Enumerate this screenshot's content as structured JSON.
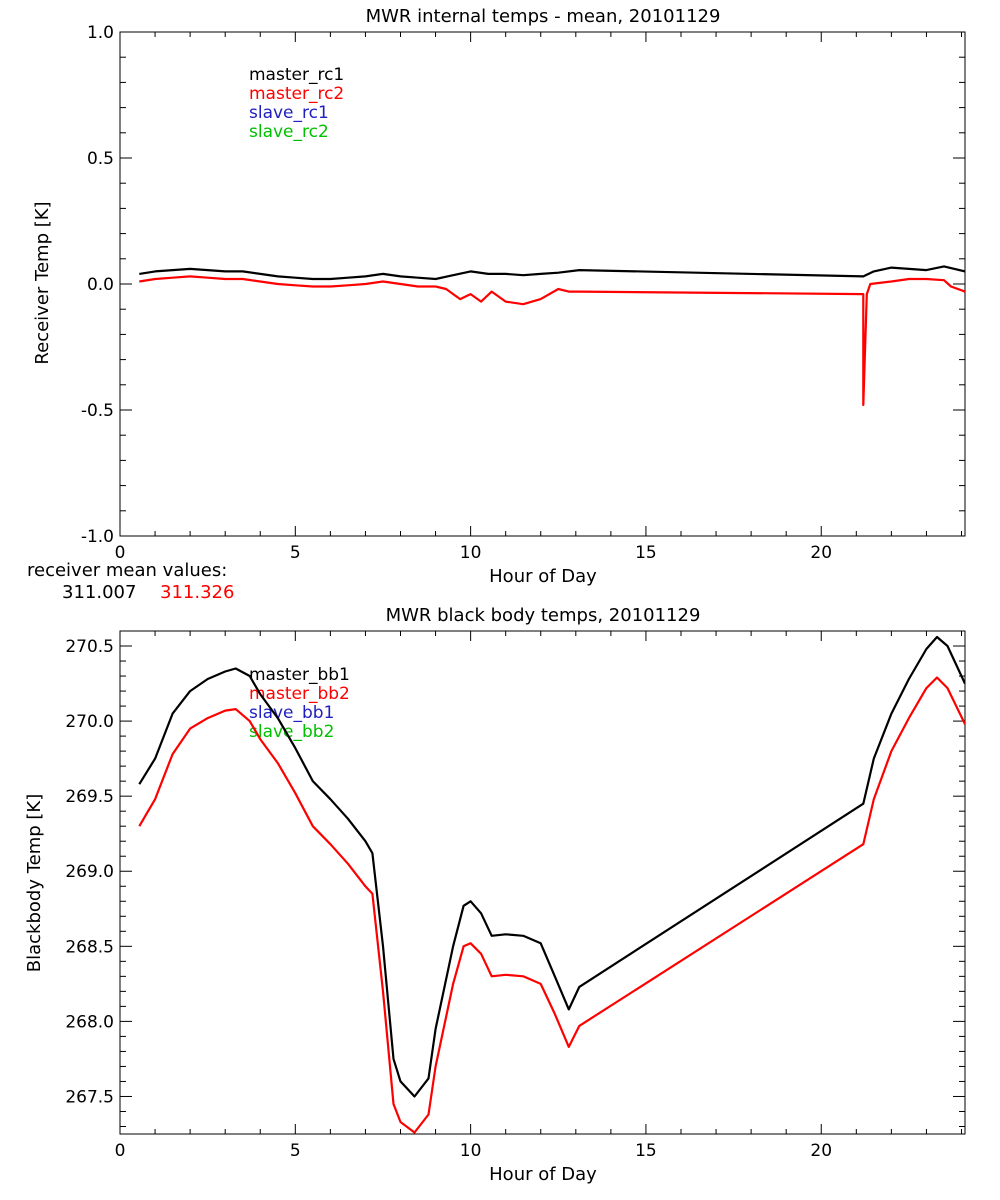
{
  "colors": {
    "master1": "#000000",
    "master2": "#ff0000",
    "slave1": "#2020c0",
    "slave2": "#00c000"
  },
  "receiver_mean": {
    "label": "receiver mean values:",
    "master_rc1": "311.007",
    "master_rc2": "311.326"
  },
  "chart_data": [
    {
      "type": "line",
      "title": "MWR internal temps - mean, 20101129",
      "xlabel": "Hour of Day",
      "ylabel": "Receiver Temp [K]",
      "xlim": [
        0,
        24.1
      ],
      "ylim": [
        -1.0,
        1.0
      ],
      "xticks": [
        0,
        5,
        10,
        15,
        20
      ],
      "xtick_labels": [
        "0",
        "5",
        "10",
        "15",
        "20"
      ],
      "yticks": [
        1.0,
        0.5,
        0.0,
        -0.5,
        -1.0
      ],
      "ytick_labels": [
        "1.0",
        "0.5",
        "0.0",
        "-0.5",
        "-1.0"
      ],
      "legend": [
        "master_rc1",
        "master_rc2",
        "slave_rc1",
        "slave_rc2"
      ],
      "legend_position": "top-left",
      "grid": false,
      "series": [
        {
          "name": "master_rc1",
          "x": [
            0.55,
            1.0,
            1.5,
            2.0,
            2.5,
            3.0,
            3.5,
            4.0,
            4.5,
            5.0,
            5.5,
            6.0,
            6.5,
            7.0,
            7.5,
            8.0,
            8.5,
            9.0,
            9.5,
            10.0,
            10.5,
            11.0,
            11.5,
            12.0,
            12.5,
            13.1,
            21.2,
            21.5,
            22.0,
            22.5,
            23.0,
            23.5,
            24.1
          ],
          "y": [
            0.04,
            0.05,
            0.055,
            0.06,
            0.055,
            0.05,
            0.05,
            0.04,
            0.03,
            0.025,
            0.02,
            0.02,
            0.025,
            0.03,
            0.04,
            0.03,
            0.025,
            0.02,
            0.035,
            0.05,
            0.04,
            0.04,
            0.035,
            0.04,
            0.045,
            0.055,
            0.03,
            0.05,
            0.065,
            0.06,
            0.055,
            0.07,
            0.05
          ]
        },
        {
          "name": "master_rc2",
          "x": [
            0.55,
            1.0,
            1.5,
            2.0,
            2.5,
            3.0,
            3.5,
            4.0,
            4.5,
            5.0,
            5.5,
            6.0,
            6.5,
            7.0,
            7.5,
            8.0,
            8.5,
            9.0,
            9.3,
            9.7,
            10.0,
            10.3,
            10.6,
            11.0,
            11.5,
            12.0,
            12.5,
            12.8,
            13.1,
            21.2,
            21.2,
            21.3,
            21.4,
            22.0,
            22.5,
            23.0,
            23.5,
            23.7,
            24.1
          ],
          "y": [
            0.01,
            0.02,
            0.025,
            0.03,
            0.025,
            0.02,
            0.02,
            0.01,
            0.0,
            -0.005,
            -0.01,
            -0.01,
            -0.005,
            0.0,
            0.01,
            0.0,
            -0.01,
            -0.01,
            -0.02,
            -0.06,
            -0.04,
            -0.07,
            -0.03,
            -0.07,
            -0.08,
            -0.06,
            -0.02,
            -0.03,
            -0.03,
            -0.04,
            -0.48,
            -0.04,
            0.0,
            0.01,
            0.02,
            0.02,
            0.015,
            -0.01,
            -0.03
          ]
        }
      ]
    },
    {
      "type": "line",
      "title": "MWR black body temps, 20101129",
      "xlabel": "Hour of Day",
      "ylabel": "Blackbody Temp [K]",
      "xlim": [
        0,
        24.1
      ],
      "ylim": [
        267.25,
        270.6
      ],
      "xticks": [
        0,
        5,
        10,
        15,
        20
      ],
      "xtick_labels": [
        "0",
        "5",
        "10",
        "15",
        "20"
      ],
      "yticks": [
        270.5,
        270.0,
        269.5,
        269.0,
        268.5,
        268.0,
        267.5
      ],
      "ytick_labels": [
        "270.5",
        "270.0",
        "269.5",
        "269.0",
        "268.5",
        "268.0",
        "267.5"
      ],
      "legend": [
        "master_bb1",
        "master_bb2",
        "slave_bb1",
        "slave_bb2"
      ],
      "legend_position": "top-left",
      "grid": false,
      "series": [
        {
          "name": "master_bb1",
          "x": [
            0.55,
            1.0,
            1.5,
            2.0,
            2.5,
            3.0,
            3.3,
            3.7,
            4.0,
            4.5,
            5.0,
            5.5,
            6.0,
            6.5,
            7.0,
            7.2,
            7.5,
            7.8,
            8.0,
            8.4,
            8.8,
            9.0,
            9.5,
            9.8,
            10.0,
            10.3,
            10.6,
            11.0,
            11.5,
            12.0,
            12.4,
            12.8,
            13.1,
            21.2,
            21.5,
            22.0,
            22.5,
            23.0,
            23.3,
            23.6,
            24.1
          ],
          "y": [
            269.58,
            269.75,
            270.05,
            270.2,
            270.28,
            270.33,
            270.35,
            270.3,
            270.18,
            270.02,
            269.82,
            269.6,
            269.48,
            269.35,
            269.2,
            269.12,
            268.5,
            267.75,
            267.6,
            267.5,
            267.62,
            267.95,
            268.5,
            268.77,
            268.8,
            268.72,
            268.57,
            268.58,
            268.57,
            268.52,
            268.3,
            268.08,
            268.23,
            269.45,
            269.75,
            270.05,
            270.28,
            270.48,
            270.56,
            270.5,
            270.25
          ]
        },
        {
          "name": "master_bb2",
          "x": [
            0.55,
            1.0,
            1.5,
            2.0,
            2.5,
            3.0,
            3.3,
            3.7,
            4.0,
            4.5,
            5.0,
            5.5,
            6.0,
            6.5,
            7.0,
            7.2,
            7.5,
            7.8,
            8.0,
            8.4,
            8.8,
            9.0,
            9.5,
            9.8,
            10.0,
            10.3,
            10.6,
            11.0,
            11.5,
            12.0,
            12.4,
            12.8,
            13.1,
            21.2,
            21.5,
            22.0,
            22.5,
            23.0,
            23.3,
            23.6,
            24.1
          ],
          "y": [
            269.3,
            269.48,
            269.78,
            269.95,
            270.02,
            270.07,
            270.08,
            270.0,
            269.88,
            269.72,
            269.52,
            269.3,
            269.18,
            269.05,
            268.9,
            268.85,
            268.2,
            267.45,
            267.33,
            267.26,
            267.38,
            267.7,
            268.25,
            268.5,
            268.52,
            268.45,
            268.3,
            268.31,
            268.3,
            268.25,
            268.05,
            267.83,
            267.97,
            269.18,
            269.48,
            269.8,
            270.02,
            270.22,
            270.29,
            270.22,
            269.98
          ]
        }
      ]
    }
  ]
}
